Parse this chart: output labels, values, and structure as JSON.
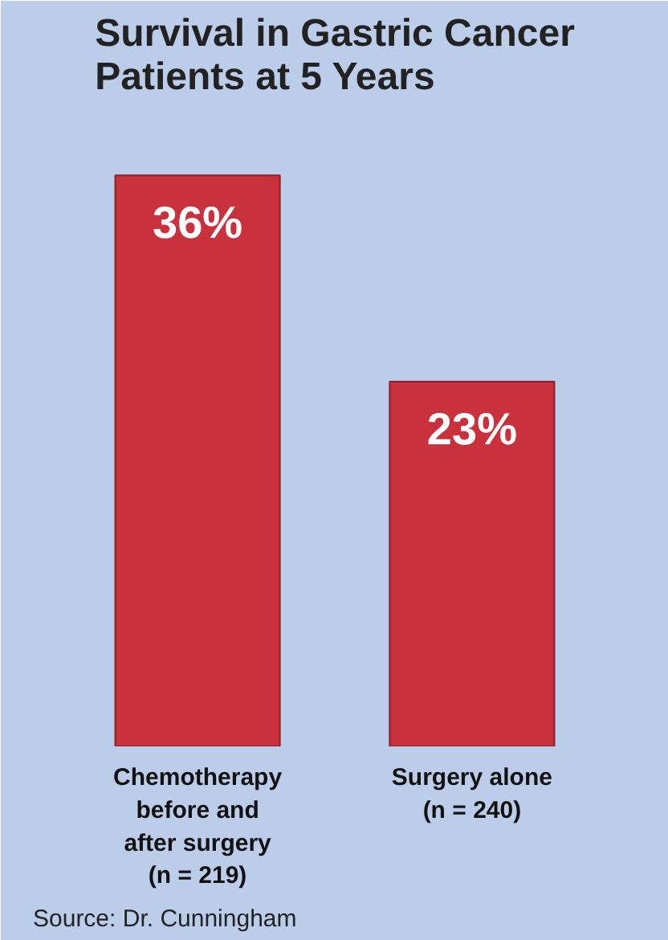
{
  "chart_data": {
    "type": "bar",
    "title": "Survival in Gastric Cancer\nPatients at 5 Years",
    "categories": [
      "Chemotherapy\nbefore and\nafter surgery\n(n = 219)",
      "Surgery alone\n(n = 240)"
    ],
    "values": [
      36,
      23
    ],
    "color": "#c9313d",
    "value_labels": [
      "36%",
      "23%"
    ],
    "annotations": [
      "Source: Dr. Cunningham"
    ],
    "grid": false,
    "tick_labels": "x"
  }
}
